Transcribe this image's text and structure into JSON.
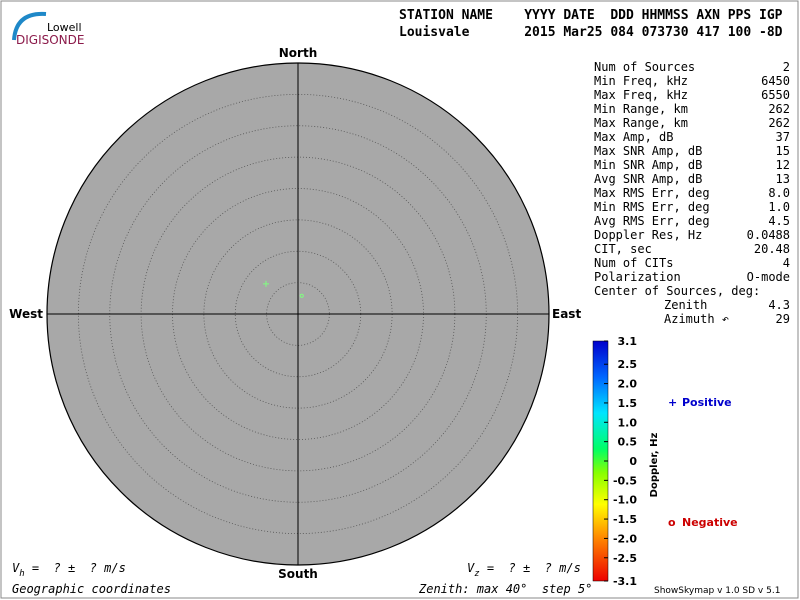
{
  "logo": {
    "top": "Lowell",
    "bottom": "DIGISONDE"
  },
  "header": {
    "line1": "STATION NAME    YYYY DATE  DDD HHMMSS AXN PPS IGP",
    "line2": "Louisvale       2015 Mar25 084 073730 417 100 -8D"
  },
  "chart_data": {
    "type": "skymap",
    "directions": {
      "north": "North",
      "south": "South",
      "east": "East",
      "west": "West"
    },
    "rlim": [
      0,
      40
    ],
    "rticks": [
      5,
      10,
      15,
      20,
      25,
      30,
      35,
      40
    ],
    "sources": [
      {
        "x": -5.1,
        "y": 4.8,
        "marker": "+",
        "color": "#80ff80"
      },
      {
        "x": 0.6,
        "y": 2.9,
        "marker": "o",
        "color": "#80ff80"
      }
    ],
    "colorbar": {
      "label": "Doppler, Hz",
      "lim": [
        -3.1,
        3.1
      ],
      "ticks": [
        3.1,
        2.5,
        {
          "value": 2,
          "label": "2.0"
        },
        1.5,
        {
          "value": 1,
          "label": "1.0"
        },
        0.5,
        0,
        -0.5,
        {
          "value": -1,
          "label": "-1.0"
        },
        -1.5,
        {
          "value": -2,
          "label": "-2.0"
        },
        -2.5,
        -3.1
      ]
    },
    "legend": {
      "positive": {
        "symbol": "+",
        "text": "Positive",
        "color": "#0000cc"
      },
      "negative": {
        "symbol": "o",
        "text": "Negative",
        "color": "#cc0000"
      }
    }
  },
  "stats": {
    "rows": [
      [
        "Num of Sources",
        "2"
      ],
      [
        "Min Freq, kHz",
        "6450"
      ],
      [
        "Max Freq, kHz",
        "6550"
      ],
      [
        "Min Range, km",
        "262"
      ],
      [
        "Max Range, km",
        "262"
      ],
      [
        "Max Amp, dB",
        "37"
      ],
      [
        "Max SNR Amp, dB",
        "15"
      ],
      [
        "Min SNR Amp, dB",
        "12"
      ],
      [
        "Avg SNR Amp, dB",
        "13"
      ],
      [
        "Max RMS Err, deg",
        "8.0"
      ],
      [
        "Min RMS Err, deg",
        "1.0"
      ],
      [
        "Avg RMS Err, deg",
        "4.5"
      ],
      [
        "Doppler Res, Hz",
        "0.0488"
      ],
      [
        "CIT, sec",
        "20.48"
      ],
      [
        "Num of CITs",
        "4"
      ],
      [
        "Polarization",
        "O-mode"
      ]
    ],
    "center": {
      "title": "Center of Sources, deg:",
      "rows": [
        [
          "Zenith",
          "4.3"
        ],
        [
          "Azimuth ↶",
          "29"
        ]
      ]
    }
  },
  "footer": {
    "vh": {
      "v": "V",
      "sub": "h",
      "rest": " =  ? ±  ? m/s"
    },
    "vz": {
      "v": "V",
      "sub": "z",
      "rest": " =  ? ±  ? m/s"
    },
    "coords": "Geographic coordinates",
    "zenith": "Zenith: max 40°  step 5°",
    "version": "ShowSkymap v 1.0  SD v 5.1"
  }
}
